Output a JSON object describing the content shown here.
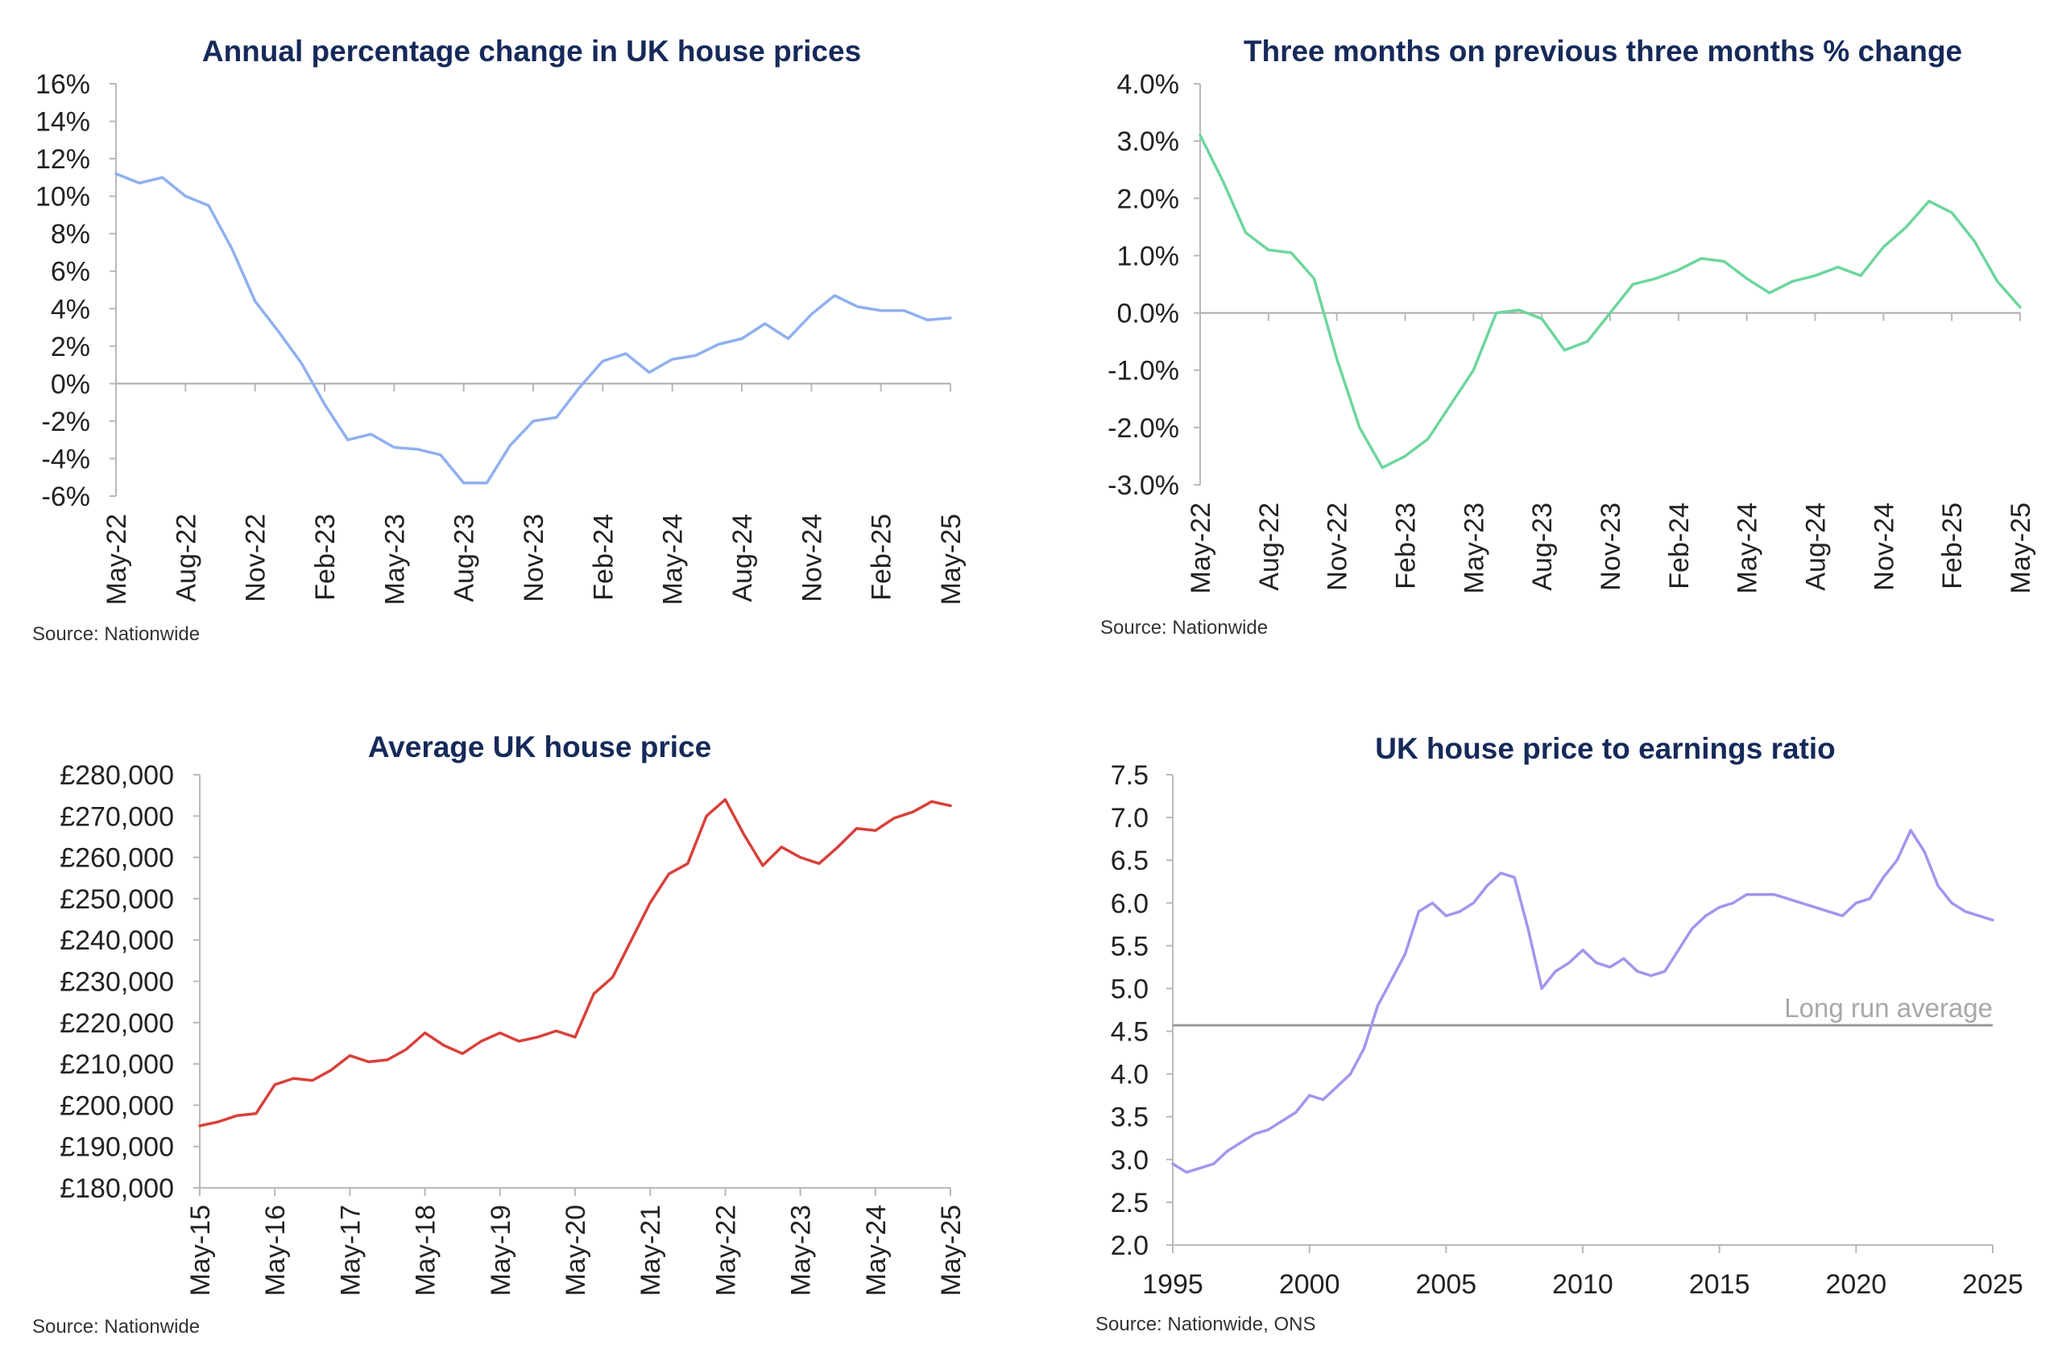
{
  "chart_data": [
    {
      "type": "line",
      "id": "annual",
      "title": "Annual percentage change in UK house prices",
      "source": "Source: Nationwide",
      "color": "#8fb0f0",
      "y_tick_labels": [
        "16%",
        "14%",
        "12%",
        "10%",
        "8%",
        "6%",
        "4%",
        "2%",
        "0%",
        "-2%",
        "-4%",
        "-6%"
      ],
      "x_tick_labels": [
        "May-22",
        "Aug-22",
        "Nov-22",
        "Feb-23",
        "May-23",
        "Aug-23",
        "Nov-23",
        "Feb-24",
        "May-24",
        "Aug-24",
        "Nov-24",
        "Feb-25",
        "May-25"
      ],
      "ylim": [
        -6,
        16
      ],
      "xlim": [
        0,
        36
      ],
      "zero_line": 0,
      "series": [
        {
          "name": "Annual % change",
          "x": [
            0,
            1,
            2,
            3,
            4,
            5,
            6,
            7,
            8,
            9,
            10,
            11,
            12,
            13,
            14,
            15,
            16,
            17,
            18,
            19,
            20,
            21,
            22,
            23,
            24,
            25,
            26,
            27,
            28,
            29,
            30,
            31,
            32,
            33,
            34,
            35,
            36
          ],
          "values": [
            11.2,
            10.7,
            11.0,
            10.0,
            9.5,
            7.2,
            4.4,
            2.8,
            1.1,
            -1.1,
            -3.0,
            -2.7,
            -3.4,
            -3.5,
            -3.8,
            -5.3,
            -5.3,
            -3.3,
            -2.0,
            -1.8,
            -0.2,
            1.2,
            1.6,
            0.6,
            1.3,
            1.5,
            2.1,
            2.4,
            3.2,
            2.4,
            3.7,
            4.7,
            4.1,
            3.9,
            3.9,
            3.4,
            3.5
          ]
        }
      ]
    },
    {
      "type": "line",
      "id": "threemonths",
      "title": "Three months on previous three months % change",
      "source": "Source: Nationwide",
      "color": "#6dd69d",
      "y_tick_labels": [
        "4.0%",
        "3.0%",
        "2.0%",
        "1.0%",
        "0.0%",
        "-1.0%",
        "-2.0%",
        "-3.0%"
      ],
      "x_tick_labels": [
        "May-22",
        "Aug-22",
        "Nov-22",
        "Feb-23",
        "May-23",
        "Aug-23",
        "Nov-23",
        "Feb-24",
        "May-24",
        "Aug-24",
        "Nov-24",
        "Feb-25",
        "May-25"
      ],
      "ylim": [
        -3,
        4
      ],
      "xlim": [
        0,
        36
      ],
      "zero_line": 0,
      "series": [
        {
          "name": "3m on 3m % change",
          "x": [
            0,
            1,
            2,
            3,
            4,
            5,
            6,
            7,
            8,
            9,
            10,
            11,
            12,
            13,
            14,
            15,
            16,
            17,
            18,
            19,
            20,
            21,
            22,
            23,
            24,
            25,
            26,
            27,
            28,
            29,
            30,
            31,
            32,
            33,
            34,
            35,
            36
          ],
          "values": [
            3.1,
            2.3,
            1.4,
            1.1,
            1.05,
            0.6,
            -0.8,
            -2.0,
            -2.7,
            -2.5,
            -2.2,
            -1.6,
            -1.0,
            0.0,
            0.05,
            -0.1,
            -0.65,
            -0.5,
            0.0,
            0.5,
            0.6,
            0.75,
            0.95,
            0.9,
            0.6,
            0.35,
            0.55,
            0.65,
            0.8,
            0.65,
            1.15,
            1.5,
            1.95,
            1.75,
            1.25,
            0.55,
            0.1
          ]
        }
      ]
    },
    {
      "type": "line",
      "id": "avgprice",
      "title": "Average UK house price",
      "source": "Source: Nationwide",
      "color": "#d9403a",
      "y_tick_labels": [
        "£280,000",
        "£270,000",
        "£260,000",
        "£250,000",
        "£240,000",
        "£230,000",
        "£220,000",
        "£210,000",
        "£200,000",
        "£190,000",
        "£180,000"
      ],
      "x_tick_labels": [
        "May-15",
        "May-16",
        "May-17",
        "May-18",
        "May-19",
        "May-20",
        "May-21",
        "May-22",
        "May-23",
        "May-24",
        "May-25"
      ],
      "ylim": [
        180000,
        280000
      ],
      "xlim": [
        0,
        10
      ],
      "series": [
        {
          "name": "Average price",
          "x": [
            0,
            0.25,
            0.5,
            0.75,
            1.0,
            1.25,
            1.5,
            1.75,
            2.0,
            2.25,
            2.5,
            2.75,
            3.0,
            3.25,
            3.5,
            3.75,
            4.0,
            4.25,
            4.5,
            4.75,
            5.0,
            5.25,
            5.5,
            5.75,
            6.0,
            6.25,
            6.5,
            6.75,
            7.0,
            7.25,
            7.5,
            7.75,
            8.0,
            8.25,
            8.5,
            8.75,
            9.0,
            9.25,
            9.5,
            9.75,
            10.0
          ],
          "values": [
            195000,
            196000,
            197500,
            198000,
            205000,
            206500,
            206000,
            208500,
            212000,
            210500,
            211000,
            213500,
            217500,
            214500,
            212500,
            215500,
            217500,
            215500,
            216500,
            218000,
            216500,
            227000,
            231000,
            240000,
            249000,
            256000,
            258500,
            270000,
            274000,
            265500,
            258000,
            262500,
            260000,
            258500,
            262500,
            267000,
            266500,
            269500,
            271000,
            273500,
            272500
          ]
        }
      ]
    },
    {
      "type": "line",
      "id": "ratio",
      "title": "UK house price to earnings ratio",
      "source": "Source: Nationwide, ONS",
      "color": "#a793ee",
      "annotation": "Long run average",
      "long_run_average": 4.57,
      "y_tick_labels": [
        "7.5",
        "7.0",
        "6.5",
        "6.0",
        "5.5",
        "5.0",
        "4.5",
        "4.0",
        "3.5",
        "3.0",
        "2.5",
        "2.0"
      ],
      "x_tick_labels": [
        "1995",
        "2000",
        "2005",
        "2010",
        "2015",
        "2020",
        "2025"
      ],
      "ylim": [
        2.0,
        7.5
      ],
      "xlim": [
        1995,
        2025
      ],
      "series": [
        {
          "name": "Price to earnings ratio",
          "x": [
            1995,
            1995.5,
            1996,
            1996.5,
            1997,
            1997.5,
            1998,
            1998.5,
            1999,
            1999.5,
            2000,
            2000.5,
            2001,
            2001.5,
            2002,
            2002.5,
            2003,
            2003.5,
            2004,
            2004.5,
            2005,
            2005.5,
            2006,
            2006.5,
            2007,
            2007.5,
            2008,
            2008.5,
            2009,
            2009.5,
            2010,
            2010.5,
            2011,
            2011.5,
            2012,
            2012.5,
            2013,
            2013.5,
            2014,
            2014.5,
            2015,
            2015.5,
            2016,
            2016.5,
            2017,
            2017.5,
            2018,
            2018.5,
            2019,
            2019.5,
            2020,
            2020.5,
            2021,
            2021.5,
            2022,
            2022.5,
            2023,
            2023.5,
            2024,
            2024.5,
            2025
          ],
          "values": [
            2.95,
            2.85,
            2.9,
            2.95,
            3.1,
            3.2,
            3.3,
            3.35,
            3.45,
            3.55,
            3.75,
            3.7,
            3.85,
            4.0,
            4.3,
            4.8,
            5.1,
            5.4,
            5.9,
            6.0,
            5.85,
            5.9,
            6.0,
            6.2,
            6.35,
            6.3,
            5.7,
            5.0,
            5.2,
            5.3,
            5.45,
            5.3,
            5.25,
            5.35,
            5.2,
            5.15,
            5.2,
            5.45,
            5.7,
            5.85,
            5.95,
            6.0,
            6.1,
            6.1,
            6.1,
            6.05,
            6.0,
            5.95,
            5.9,
            5.85,
            6.0,
            6.05,
            6.3,
            6.5,
            6.85,
            6.6,
            6.2,
            6.0,
            5.9,
            5.85,
            5.8
          ]
        }
      ]
    }
  ]
}
